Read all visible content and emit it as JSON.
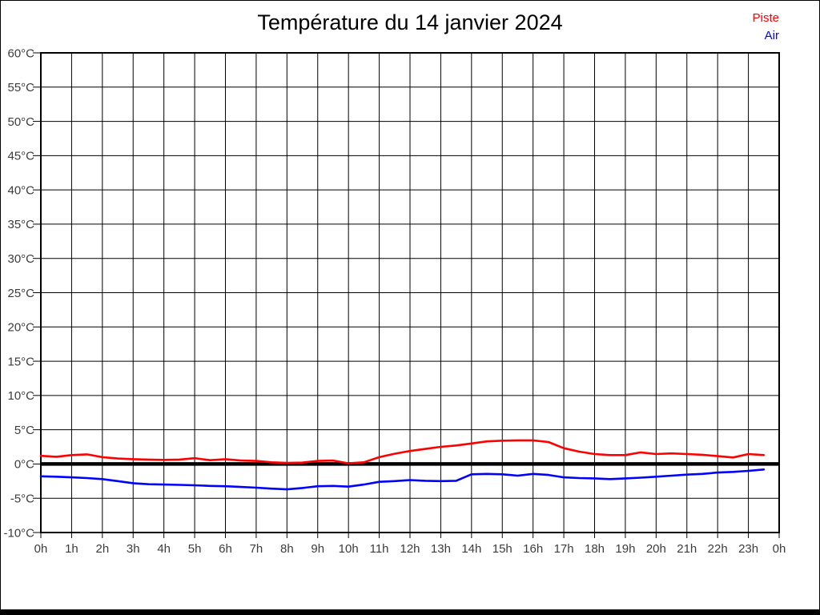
{
  "title": "Température du 14 janvier 2024",
  "legend": [
    {
      "key": "piste",
      "label": "Piste",
      "color": "#ff0000"
    },
    {
      "key": "air",
      "label": "Air",
      "color": "#0000ff"
    }
  ],
  "frame": {
    "border_color": "#000000",
    "bottom_bar_color": "#000000"
  },
  "chart_data": {
    "type": "line",
    "title": "Température du 14 janvier 2024",
    "xlabel": "",
    "ylabel": "",
    "xlim": [
      0,
      24
    ],
    "ylim": [
      -10,
      60
    ],
    "y_tick_step": 5,
    "grid": true,
    "zero_line": true,
    "legend_position": "top-right",
    "grid_color": "#000000",
    "tick_label_color": "#3c3c3c",
    "x_tick_labels": [
      "0h",
      "1h",
      "2h",
      "3h",
      "4h",
      "5h",
      "6h",
      "7h",
      "8h",
      "9h",
      "10h",
      "11h",
      "12h",
      "13h",
      "14h",
      "15h",
      "16h",
      "17h",
      "18h",
      "19h",
      "20h",
      "21h",
      "22h",
      "23h",
      "0h"
    ],
    "y_tick_labels": [
      "60°C",
      "55°C",
      "50°C",
      "45°C",
      "40°C",
      "35°C",
      "30°C",
      "25°C",
      "20°C",
      "15°C",
      "10°C",
      "5°C",
      "0°C",
      "-5°C",
      "-10°C"
    ],
    "x": [
      0,
      0.5,
      1,
      1.5,
      2,
      2.5,
      3,
      3.5,
      4,
      4.5,
      5,
      5.5,
      6,
      6.5,
      7,
      7.5,
      8,
      8.5,
      9,
      9.5,
      10,
      10.5,
      11,
      11.5,
      12,
      12.5,
      13,
      13.5,
      14,
      14.5,
      15,
      15.5,
      16,
      16.5,
      17,
      17.5,
      18,
      18.5,
      19,
      19.5,
      20,
      20.5,
      21,
      21.5,
      22,
      22.5,
      23,
      23.5
    ],
    "series": [
      {
        "name": "Piste",
        "color": "#ff0000",
        "values": [
          1.2,
          1.05,
          1.3,
          1.4,
          1.0,
          0.8,
          0.7,
          0.65,
          0.6,
          0.65,
          0.85,
          0.55,
          0.7,
          0.5,
          0.45,
          0.25,
          0.15,
          0.2,
          0.45,
          0.5,
          0.1,
          0.25,
          1.0,
          1.5,
          1.9,
          2.2,
          2.5,
          2.7,
          3.0,
          3.3,
          3.4,
          3.45,
          3.45,
          3.2,
          2.3,
          1.8,
          1.45,
          1.3,
          1.3,
          1.7,
          1.45,
          1.55,
          1.45,
          1.35,
          1.15,
          0.95,
          1.45,
          1.3
        ]
      },
      {
        "name": "Air",
        "color": "#0000ff",
        "values": [
          -1.8,
          -1.85,
          -1.95,
          -2.05,
          -2.2,
          -2.5,
          -2.8,
          -2.95,
          -3.0,
          -3.05,
          -3.1,
          -3.2,
          -3.25,
          -3.35,
          -3.45,
          -3.6,
          -3.7,
          -3.5,
          -3.25,
          -3.2,
          -3.3,
          -3.0,
          -2.6,
          -2.5,
          -2.35,
          -2.45,
          -2.5,
          -2.45,
          -1.5,
          -1.45,
          -1.5,
          -1.7,
          -1.45,
          -1.6,
          -1.95,
          -2.05,
          -2.1,
          -2.2,
          -2.1,
          -2.0,
          -1.85,
          -1.7,
          -1.55,
          -1.45,
          -1.25,
          -1.15,
          -1.0,
          -0.8
        ]
      }
    ]
  }
}
